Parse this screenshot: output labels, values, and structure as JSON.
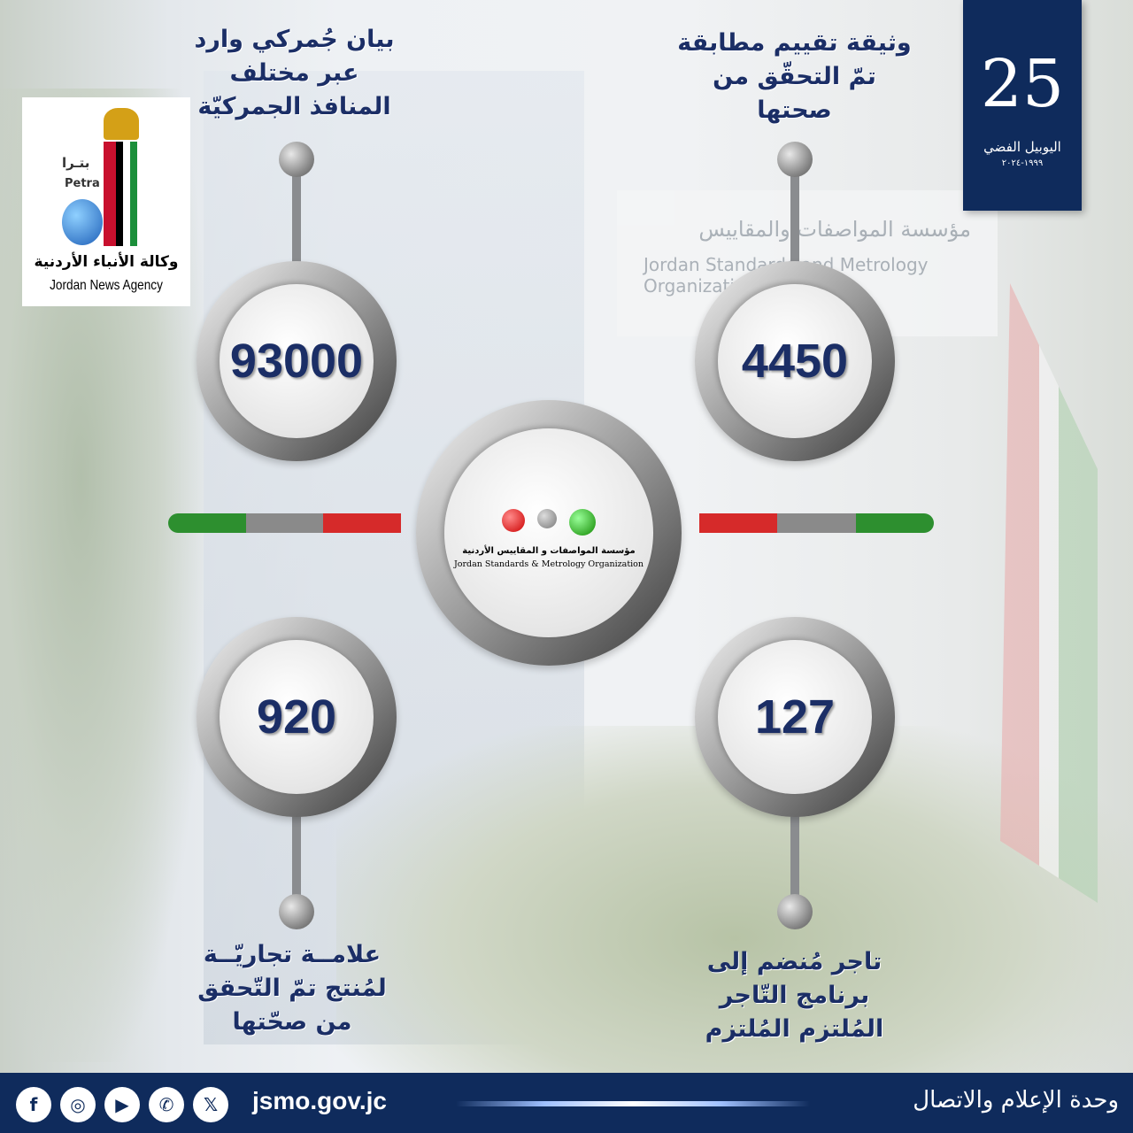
{
  "background_colors": {
    "navy": "#1b2e66",
    "footer": "#0f2b5c",
    "green": "#2d8f2f",
    "gray": "#8a8a8a",
    "red": "#d62a2a"
  },
  "stats": [
    {
      "value": "93000",
      "label": "بيان جُمركي وارد عبر مختلف المنافذ الجمركيّة"
    },
    {
      "value": "4450",
      "label": "وثيقة تقييم مطابقة تمّ التحقّق من صحتها"
    },
    {
      "value": "920",
      "label": "علامــة تجاريّــة لمُنتج تمّ التّحقق من صحّتها"
    },
    {
      "value": "127",
      "label": "تاجر مُنضم إلى برنامج التّاجر المُلتزم المُلتزم"
    }
  ],
  "petra_logo": {
    "arabic_short": "بتـرا",
    "latin_short": "Petra",
    "arabic_name": "وكالة الأنباء الأردنية",
    "english_name": "Jordan News Agency"
  },
  "jubilee_logo": {
    "number": "25",
    "text": "اليوبيل الفضي",
    "years": "١٩٩٩-٢٠٢٤"
  },
  "center_logo": {
    "arabic": "مؤسسة المواصفات و المقاييس الأردنية",
    "english": "Jordan Standards & Metrology Organization"
  },
  "background_sign": {
    "arabic": "مؤسسة المواصفات والمقاييس",
    "english": "Jordan Standards and Metrology Organization"
  },
  "footer": {
    "website": "jsmo.gov.jc",
    "department": "وحدة الإعلام والاتصال",
    "social": [
      "facebook-icon",
      "instagram-icon",
      "youtube-icon",
      "whatsapp-icon",
      "x-icon"
    ]
  }
}
